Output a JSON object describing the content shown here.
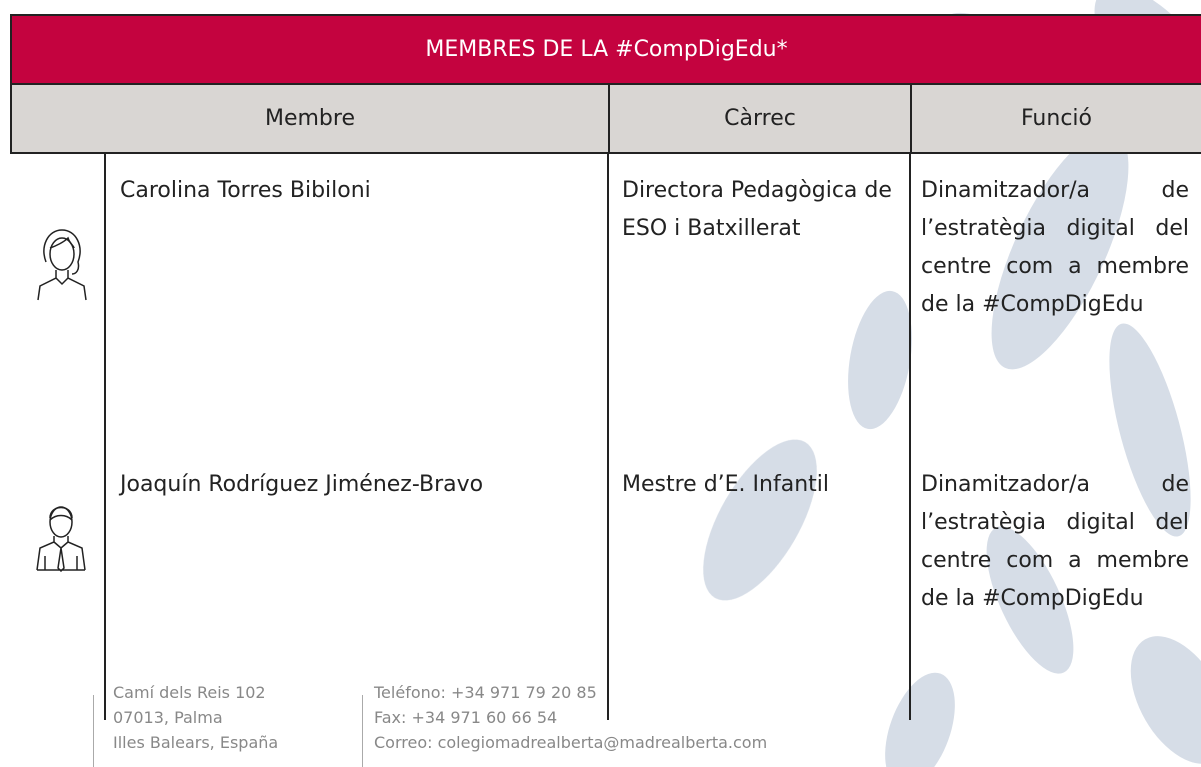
{
  "table": {
    "title": "MEMBRES DE LA #CompDigEdu*",
    "headers": [
      "Membre",
      "Càrrec",
      "Funció"
    ],
    "rows": [
      [
        "Carolina Torres Bibiloni",
        "Directora Pedagògica de ESO i Batxillerat",
        "Dinamitzador/a de l’estratègia digital del centre com a membre de la #CompDigEdu"
      ],
      [
        "Joaquín Rodríguez Jiménez-Bravo",
        "Mestre d’E. Infantil",
        "Dinamitzador/a de l’estratègia digital del centre com a membre de la #CompDigEdu"
      ]
    ]
  },
  "footer": {
    "address": [
      "Camí dels Reis 102",
      "07013, Palma",
      "Illes Balears, España"
    ],
    "contact": [
      "Teléfono: +34 971 79 20 85",
      "Fax: +34 971 60 66 54",
      "Correo: colegiomadrealberta@madrealberta.com"
    ]
  }
}
